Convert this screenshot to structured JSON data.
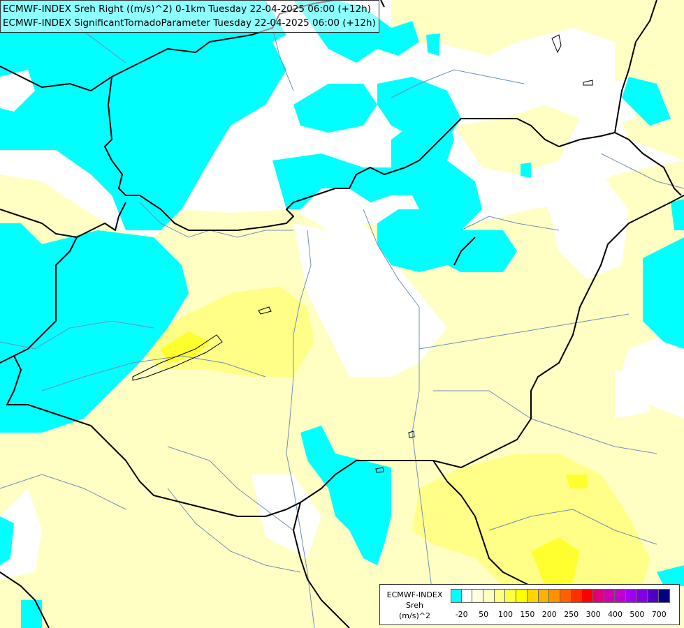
{
  "header": {
    "line1": "ECMWF-INDEX Sreh Right ((m/s)^2) 0-1km Tuesday 22-04-2025 06:00 (+12h)",
    "line2": "ECMWF-INDEX SignificantTornadoParameter Tuesday 22-04-2025 06:00 (+12h)"
  },
  "legend": {
    "line1": "ECMWF-INDEX",
    "line2": "Sreh",
    "line3": "(m/s)^2",
    "colors": [
      "#00ffff",
      "#ffffff",
      "#ffffe0",
      "#ffffc0",
      "#ffff80",
      "#ffff40",
      "#ffff00",
      "#ffd700",
      "#ffb000",
      "#ff9000",
      "#ff6000",
      "#ff3000",
      "#ff0000",
      "#e0007a",
      "#d000b0",
      "#c000d0",
      "#a000f0",
      "#8000e0",
      "#5000c0",
      "#000080"
    ],
    "ticks": [
      "-20",
      "50",
      "100",
      "150",
      "200",
      "250",
      "300",
      "400",
      "500",
      "700"
    ]
  },
  "colors": {
    "cyan": "#00ffff",
    "pale_yellow": "#ffffc4",
    "yellow": "#ffff88",
    "bright_yellow": "#ffff30",
    "border": "#000000",
    "river": "#6e8fb6"
  }
}
